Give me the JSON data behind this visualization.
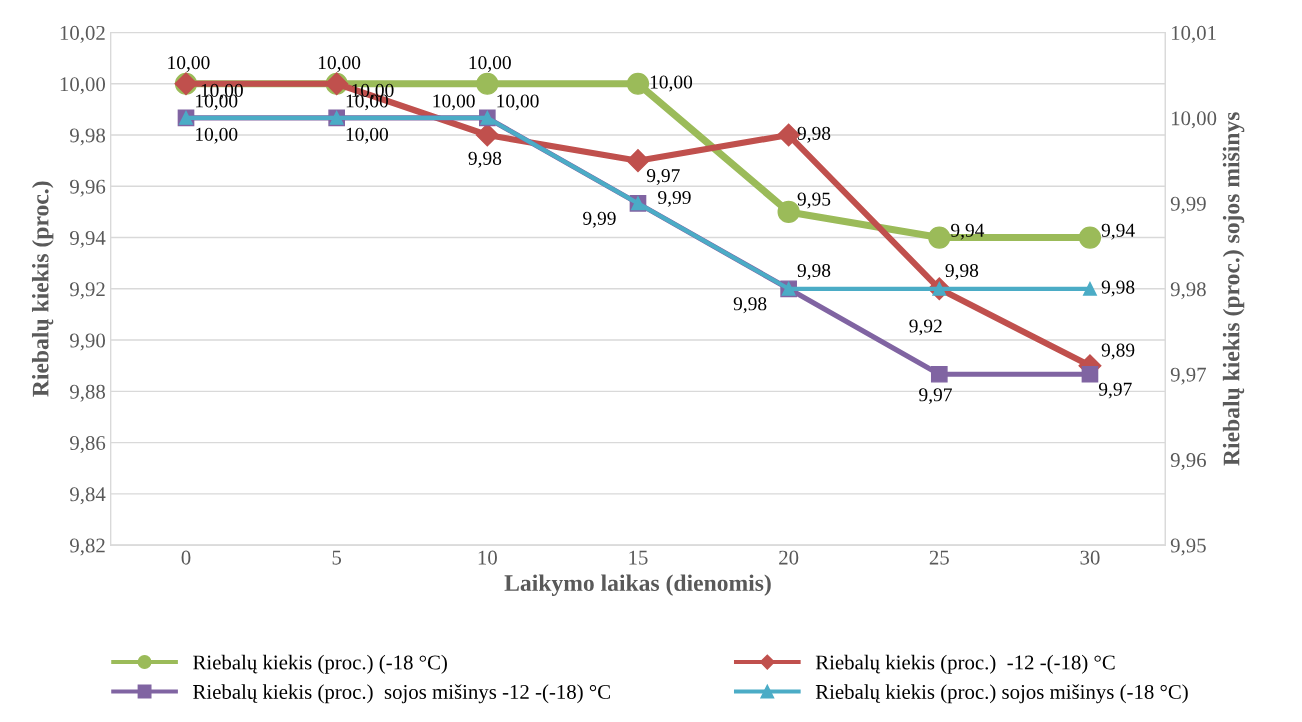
{
  "chart_data": {
    "type": "line",
    "xlabel": "Laikymo laikas (dienomis)",
    "ylabel": "Riebalų kiekis (proc.)",
    "y2label": "Riebalų kiekis (proc.) sojos mišinys",
    "categories": [
      "0",
      "5",
      "10",
      "15",
      "20",
      "25",
      "30"
    ],
    "series": [
      {
        "name": "Riebalų kiekis (proc.) (-18 °C)",
        "color": "#9bbb59",
        "marker": "circle",
        "values": [
          10.0,
          10.0,
          10.0,
          10.0,
          9.95,
          9.94,
          9.94
        ],
        "value_labels": [
          "10,00",
          "10,00",
          "10,00",
          "10,00",
          "9,95",
          "9,94",
          "9,94"
        ]
      },
      {
        "name": "Riebalų kiekis (proc.)  -12 -(-18) °C",
        "color": "#c0504d",
        "marker": "diamond",
        "values": [
          10.0,
          10.0,
          9.98,
          9.97,
          9.98,
          9.92,
          9.89
        ],
        "value_labels": [
          "10,00",
          "10,00",
          "9,98",
          "9,97",
          "9,98",
          "9,92",
          "9,89"
        ]
      },
      {
        "name": "Riebalų kiekis (proc.)  sojos mišinys -12 -(-18) °C",
        "color": "#8064a2",
        "marker": "square",
        "axis": "y2",
        "values": [
          10.0,
          10.0,
          10.0,
          9.99,
          9.98,
          9.97,
          9.97
        ],
        "value_labels": [
          "10,00",
          "10,00",
          "10,00",
          "9,99",
          "9,98",
          "9,97",
          "9,97"
        ]
      },
      {
        "name": "Riebalų kiekis (proc.) sojos mišinys (-18 °C)",
        "color": "#4bacc6",
        "marker": "triangle",
        "axis": "y2",
        "values": [
          10.0,
          10.0,
          10.0,
          9.99,
          9.98,
          9.98,
          9.98
        ],
        "value_labels": [
          "10,00",
          "10,00",
          "10,00",
          "9,99",
          "9,98",
          "9,98",
          "9,98"
        ]
      }
    ],
    "ylim": [
      9.82,
      10.02
    ],
    "yticks": [
      {
        "value": 9.82,
        "label": "9,82"
      },
      {
        "value": 9.84,
        "label": "9,84"
      },
      {
        "value": 9.86,
        "label": "9,86"
      },
      {
        "value": 9.88,
        "label": "9,88"
      },
      {
        "value": 9.9,
        "label": "9,90"
      },
      {
        "value": 9.92,
        "label": "9,92"
      },
      {
        "value": 9.94,
        "label": "9,94"
      },
      {
        "value": 9.96,
        "label": "9,96"
      },
      {
        "value": 9.98,
        "label": "9,98"
      },
      {
        "value": 10.0,
        "label": "10,00"
      },
      {
        "value": 10.02,
        "label": "10,02"
      }
    ],
    "y2lim": [
      9.95,
      10.01
    ],
    "y2ticks": [
      {
        "value": 9.95,
        "label": "9,95"
      },
      {
        "value": 9.96,
        "label": "9,96"
      },
      {
        "value": 9.97,
        "label": "9,97"
      },
      {
        "value": 9.98,
        "label": "9,98"
      },
      {
        "value": 9.99,
        "label": "9,99"
      },
      {
        "value": 10.0,
        "label": "10,00"
      },
      {
        "value": 10.01,
        "label": "10,01"
      }
    ],
    "grid": "y",
    "legend": "bottom",
    "line_style": "solid"
  }
}
